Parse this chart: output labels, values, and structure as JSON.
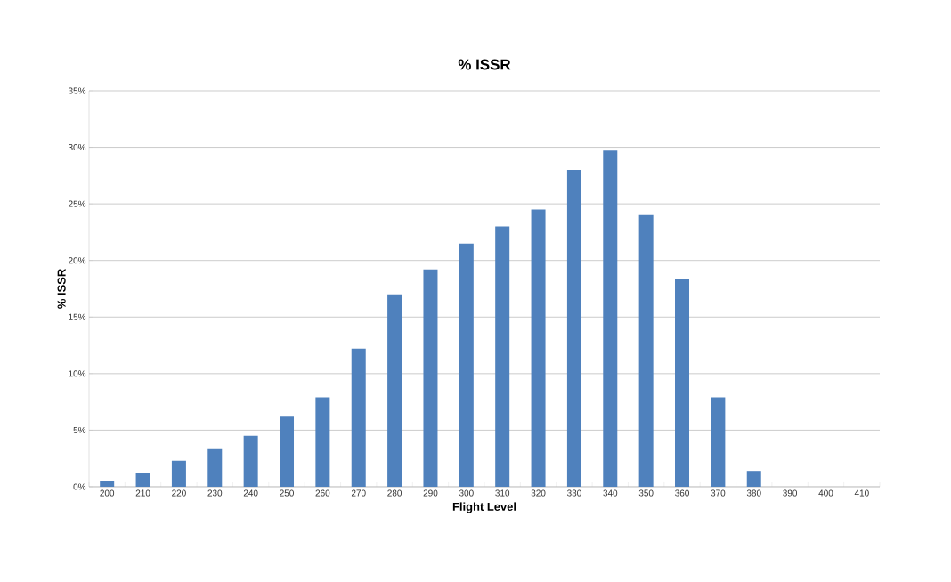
{
  "chart_data": {
    "type": "bar",
    "title": "% ISSR",
    "xlabel": "Flight Level",
    "ylabel": "% ISSR",
    "categories": [
      "200",
      "210",
      "220",
      "230",
      "240",
      "250",
      "260",
      "270",
      "280",
      "290",
      "300",
      "310",
      "320",
      "330",
      "340",
      "350",
      "360",
      "370",
      "380",
      "390",
      "400",
      "410"
    ],
    "values": [
      0.5,
      1.2,
      2.3,
      3.4,
      4.5,
      6.2,
      7.9,
      12.2,
      17.0,
      19.2,
      21.5,
      23.0,
      24.5,
      28.0,
      29.7,
      24.0,
      18.4,
      7.9,
      1.4,
      0,
      0,
      0
    ],
    "color": "#4f81bd",
    "ylim": [
      0,
      35
    ],
    "yticks": [
      {
        "value": 0,
        "label": "0%"
      },
      {
        "value": 5,
        "label": "5%"
      },
      {
        "value": 10,
        "label": "10%"
      },
      {
        "value": 15,
        "label": "15%"
      },
      {
        "value": 20,
        "label": "20%"
      },
      {
        "value": 25,
        "label": "25%"
      },
      {
        "value": 30,
        "label": "30%"
      },
      {
        "value": 35,
        "label": "35%"
      }
    ],
    "grid": "y"
  }
}
